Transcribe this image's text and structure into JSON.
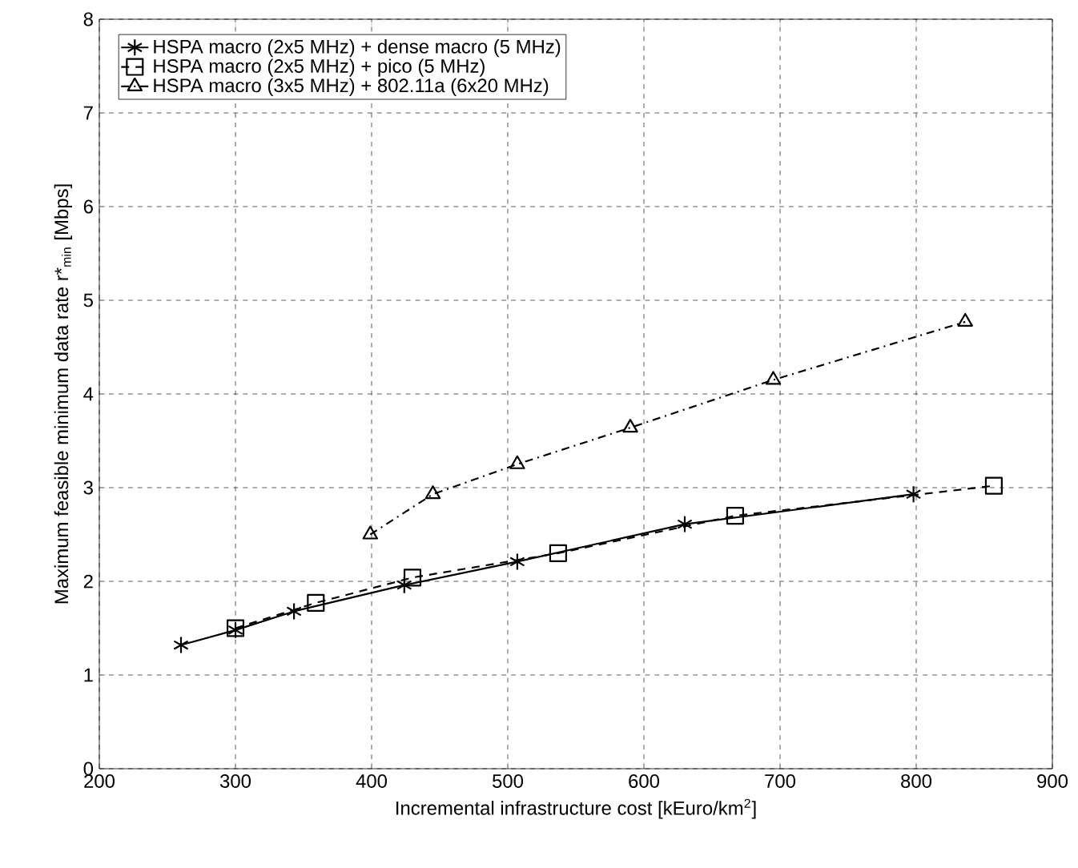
{
  "chart_data": {
    "type": "line",
    "xlabel": "Incremental infrastructure cost [kEuro/km$^{2}$]",
    "ylabel": "Maximum feasible minimum data rate r*$_{min}$ [Mbps]",
    "xlim": [
      200,
      900
    ],
    "xticks": [
      200,
      300,
      400,
      500,
      600,
      700,
      800,
      900
    ],
    "ylim": [
      0,
      8
    ],
    "yticks": [
      0,
      1,
      2,
      3,
      4,
      5,
      6,
      7,
      8
    ],
    "grid": true,
    "legend": "top left",
    "series": [
      {
        "name": "HSPA macro (2x5 MHz) + dense macro (5 MHz)",
        "color": "#000000",
        "marker": "cross",
        "line_style": "solid",
        "x": [
          260,
          300,
          343,
          424,
          507,
          630,
          798
        ],
        "values": [
          1.32,
          1.48,
          1.68,
          1.96,
          2.21,
          2.61,
          2.93
        ]
      },
      {
        "name": "HSPA macro (2x5 MHz) + pico (5 MHz)",
        "color": "#000000",
        "marker": "square",
        "line_style": "dashed",
        "x": [
          300,
          359,
          430,
          537,
          667,
          857
        ],
        "values": [
          1.5,
          1.77,
          2.04,
          2.3,
          2.7,
          3.02
        ]
      },
      {
        "name": "HSPA macro (3x5 MHz) + 802.11a (6x20 MHz)",
        "color": "#000000",
        "marker": "triangle",
        "line_style": "dashdot",
        "x": [
          399,
          445,
          507,
          590,
          695,
          836
        ],
        "values": [
          2.5,
          2.93,
          3.25,
          3.64,
          4.15,
          4.77
        ]
      }
    ]
  }
}
